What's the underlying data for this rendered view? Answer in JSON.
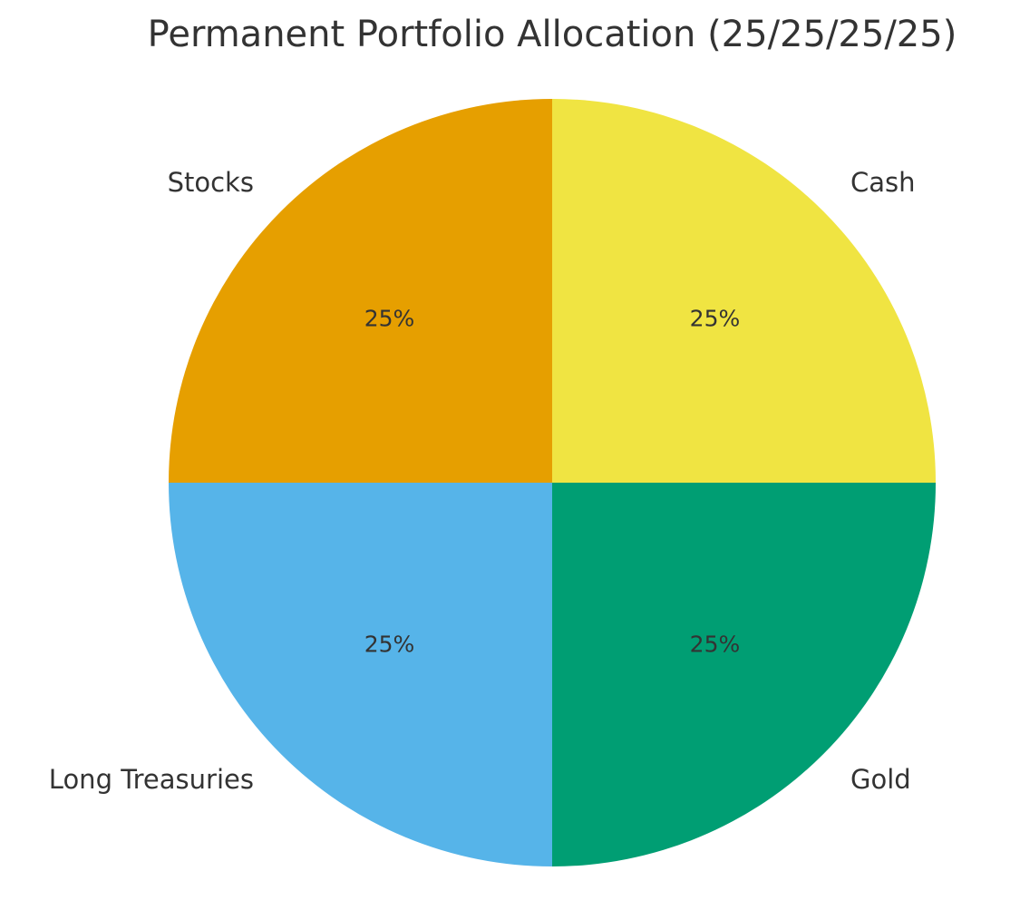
{
  "chart_data": {
    "type": "pie",
    "title": "Permanent Portfolio Allocation (25/25/25/25)",
    "categories": [
      "Stocks",
      "Long Treasuries",
      "Gold",
      "Cash"
    ],
    "values": [
      25,
      25,
      25,
      25
    ],
    "value_labels": [
      "25%",
      "25%",
      "25%",
      "25%"
    ],
    "colors": [
      "#e69f00",
      "#56b4e9",
      "#009e73",
      "#f0e442"
    ]
  }
}
